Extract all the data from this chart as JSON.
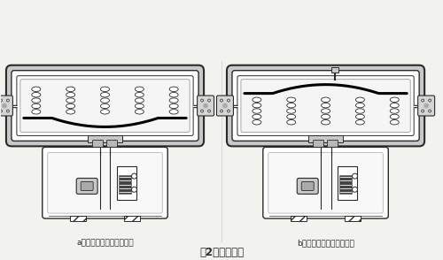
{
  "title": "图2、执行机构",
  "label_a": "a、反作用与阀构成气开式",
  "label_b": "b、正作用与阀构成气关式",
  "bg_color": "#f2f2ee",
  "lc": "#2a2a2a",
  "white": "#ffffff",
  "light_gray": "#d8d8d8",
  "mid_gray": "#aaaaaa",
  "dark_gray": "#555555",
  "title_fontsize": 8.5,
  "label_fontsize": 6.5
}
